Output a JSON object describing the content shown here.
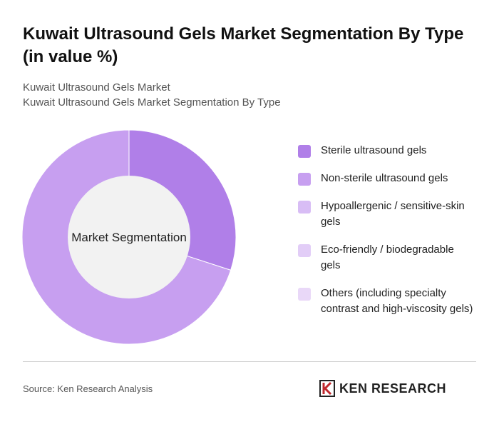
{
  "chart_data": {
    "type": "donut",
    "title": "Kuwait Ultrasound Gels Market Segmentation By Type (in value %)",
    "subtitle": [
      "Kuwait Ultrasound Gels Market",
      "Kuwait Ultrasound Gels Market Segmentation By Type"
    ],
    "center_label": "Market Segmentation",
    "categories": [
      "Sterile ultrasound gels",
      "Non-sterile ultrasound gels",
      "Hypoallergenic / sensitive-skin gels",
      "Eco-friendly / biodegradable gels",
      "Others (including specialty contrast and high-viscosity gels)"
    ],
    "values": [
      30,
      70,
      0,
      0,
      0
    ],
    "colors": [
      "#b07fe8",
      "#c79ff0",
      "#d8bdf5",
      "#e2cdf7",
      "#e9d8f8"
    ],
    "source": "Source: Ken Research Analysis",
    "logo": "KEN RESEARCH"
  }
}
